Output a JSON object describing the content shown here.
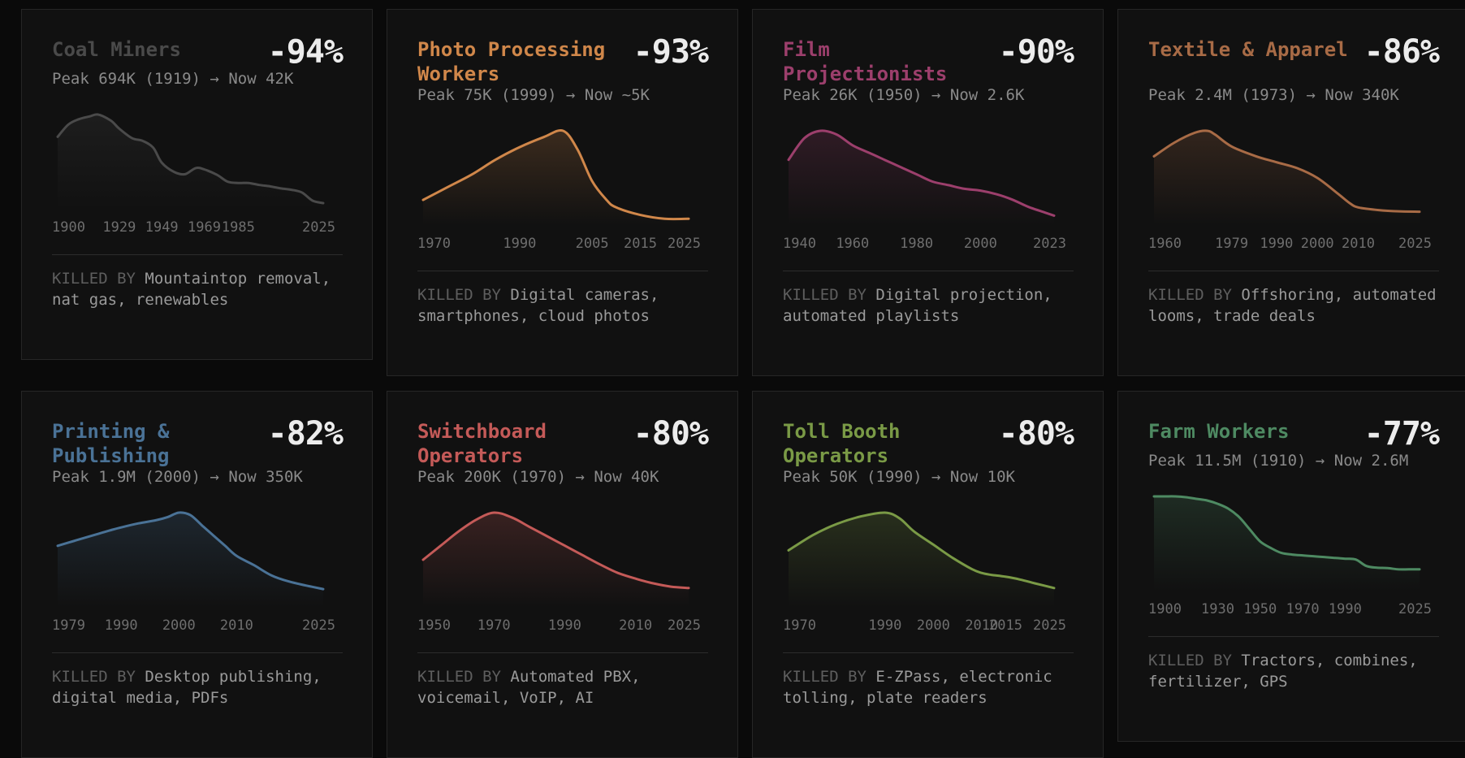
{
  "cards": [
    {
      "title": "Coal Miners",
      "percent": "-94%",
      "peak": "Peak 694K (1919) → Now 42K",
      "killed_label": "KILLED BY",
      "killed_by": "Mountaintop removal, nat gas, renewables",
      "color": "#4a4a4a",
      "ticks": [
        "1900",
        "1929",
        "1949",
        "1969",
        "1985",
        "2025"
      ]
    },
    {
      "title": "Photo Processing Workers",
      "percent": "-93%",
      "peak": "Peak 75K (1999) → Now ~5K",
      "killed_label": "KILLED BY",
      "killed_by": "Digital cameras, smartphones, cloud photos",
      "color": "#d0874a",
      "ticks": [
        "1970",
        "1990",
        "2005",
        "2015",
        "2025"
      ]
    },
    {
      "title": "Film Projectionists",
      "percent": "-90%",
      "peak": "Peak 26K (1950) → Now 2.6K",
      "killed_label": "KILLED BY",
      "killed_by": "Digital projection, automated playlists",
      "color": "#9c3f6c",
      "ticks": [
        "1940",
        "1960",
        "1980",
        "2000",
        "2023"
      ]
    },
    {
      "title": "Textile & Apparel",
      "percent": "-86%",
      "peak": "Peak 2.4M (1973) → Now 340K",
      "killed_label": "KILLED BY",
      "killed_by": "Offshoring, automated looms, trade deals",
      "color": "#a86b46",
      "ticks": [
        "1960",
        "1979",
        "1990",
        "2000",
        "2010",
        "2025"
      ]
    },
    {
      "title": "Printing & Publishing",
      "percent": "-82%",
      "peak": "Peak 1.9M (2000) → Now 350K",
      "killed_label": "KILLED BY",
      "killed_by": "Desktop publishing, digital media, PDFs",
      "color": "#4a7296",
      "ticks": [
        "1979",
        "1990",
        "2000",
        "2010",
        "2025"
      ]
    },
    {
      "title": "Switchboard Operators",
      "percent": "-80%",
      "peak": "Peak 200K (1970) → Now 40K",
      "killed_label": "KILLED BY",
      "killed_by": "Automated PBX, voicemail, VoIP, AI",
      "color": "#c45a58",
      "ticks": [
        "1950",
        "1970",
        "1990",
        "2010",
        "2025"
      ]
    },
    {
      "title": "Toll Booth Operators",
      "percent": "-80%",
      "peak": "Peak 50K (1990) → Now 10K",
      "killed_label": "KILLED BY",
      "killed_by": "E-ZPass, electronic tolling, plate readers",
      "color": "#7a9a46",
      "ticks": [
        "1970",
        "1990",
        "2000",
        "2010",
        "2015",
        "2025"
      ]
    },
    {
      "title": "Farm Workers",
      "percent": "-77%",
      "peak": "Peak 11.5M (1910) → Now 2.6M",
      "killed_label": "KILLED BY",
      "killed_by": "Tractors, combines, fertilizer, GPS",
      "color": "#4e8a62",
      "ticks": [
        "1900",
        "1930",
        "1950",
        "1970",
        "1990",
        "2025"
      ]
    }
  ],
  "chart_data": [
    {
      "type": "area",
      "title": "Coal Miners",
      "x": [
        1900,
        1905,
        1910,
        1915,
        1919,
        1925,
        1929,
        1935,
        1940,
        1945,
        1949,
        1955,
        1960,
        1965,
        1969,
        1975,
        1980,
        1985,
        1990,
        1995,
        2000,
        2005,
        2010,
        2015,
        2020,
        2025
      ],
      "y": [
        530,
        620,
        660,
        680,
        694,
        650,
        590,
        520,
        500,
        450,
        340,
        270,
        255,
        300,
        290,
        250,
        200,
        190,
        190,
        175,
        165,
        150,
        140,
        120,
        60,
        42
      ]
    },
    {
      "type": "area",
      "title": "Photo Processing Workers",
      "x": [
        1970,
        1975,
        1980,
        1985,
        1990,
        1995,
        1999,
        2002,
        2005,
        2008,
        2010,
        2015,
        2020,
        2025
      ],
      "y": [
        20,
        30,
        40,
        52,
        62,
        70,
        75,
        60,
        35,
        20,
        14,
        8,
        5,
        5
      ]
    },
    {
      "type": "area",
      "title": "Film Projectionists",
      "x": [
        1940,
        1945,
        1950,
        1955,
        1960,
        1965,
        1970,
        1975,
        1980,
        1985,
        1990,
        1995,
        2000,
        2005,
        2010,
        2015,
        2020,
        2023
      ],
      "y": [
        18,
        24,
        26,
        25,
        22,
        20,
        18,
        16,
        14,
        12,
        11,
        10,
        9.5,
        8.5,
        7,
        5,
        3.5,
        2.6
      ]
    },
    {
      "type": "area",
      "title": "Textile & Apparel",
      "x": [
        1960,
        1965,
        1970,
        1973,
        1975,
        1979,
        1985,
        1990,
        1995,
        2000,
        2005,
        2008,
        2010,
        2015,
        2020,
        2025
      ],
      "y": [
        1.75,
        2.1,
        2.35,
        2.4,
        2.3,
        2.0,
        1.75,
        1.6,
        1.45,
        1.2,
        0.8,
        0.55,
        0.45,
        0.38,
        0.35,
        0.34
      ]
    },
    {
      "type": "area",
      "title": "Printing & Publishing",
      "x": [
        1979,
        1982,
        1985,
        1988,
        1990,
        1993,
        1996,
        1998,
        2000,
        2002,
        2004,
        2006,
        2008,
        2010,
        2013,
        2016,
        2019,
        2022,
        2025
      ],
      "y": [
        1.2,
        1.3,
        1.4,
        1.5,
        1.56,
        1.64,
        1.7,
        1.76,
        1.85,
        1.8,
        1.6,
        1.4,
        1.2,
        1.0,
        0.82,
        0.62,
        0.5,
        0.42,
        0.35
      ]
    },
    {
      "type": "area",
      "title": "Switchboard Operators",
      "x": [
        1950,
        1955,
        1960,
        1965,
        1970,
        1975,
        1980,
        1985,
        1990,
        1995,
        2000,
        2005,
        2010,
        2015,
        2020,
        2025
      ],
      "y": [
        100,
        130,
        160,
        185,
        200,
        190,
        170,
        150,
        130,
        110,
        90,
        72,
        60,
        50,
        43,
        40
      ]
    },
    {
      "type": "area",
      "title": "Toll Booth Operators",
      "x": [
        1970,
        1975,
        1980,
        1985,
        1990,
        1993,
        1996,
        2000,
        2004,
        2008,
        2010,
        2012,
        2015,
        2018,
        2021,
        2025
      ],
      "y": [
        30,
        38,
        44,
        48,
        50,
        47,
        40,
        33,
        26,
        20,
        18,
        17,
        16,
        14.5,
        12.5,
        10
      ]
    },
    {
      "type": "area",
      "title": "Farm Workers",
      "x": [
        1900,
        1905,
        1910,
        1915,
        1920,
        1925,
        1930,
        1935,
        1940,
        1945,
        1950,
        1955,
        1960,
        1965,
        1970,
        1975,
        1980,
        1985,
        1990,
        1995,
        2000,
        2005,
        2010,
        2015,
        2020,
        2025
      ],
      "y": [
        11.5,
        11.5,
        11.5,
        11.4,
        11.2,
        11.0,
        10.6,
        10.0,
        9.0,
        7.5,
        6.0,
        5.2,
        4.6,
        4.4,
        4.3,
        4.2,
        4.1,
        4.0,
        3.9,
        3.8,
        3.0,
        2.8,
        2.75,
        2.6,
        2.6,
        2.6
      ]
    }
  ]
}
